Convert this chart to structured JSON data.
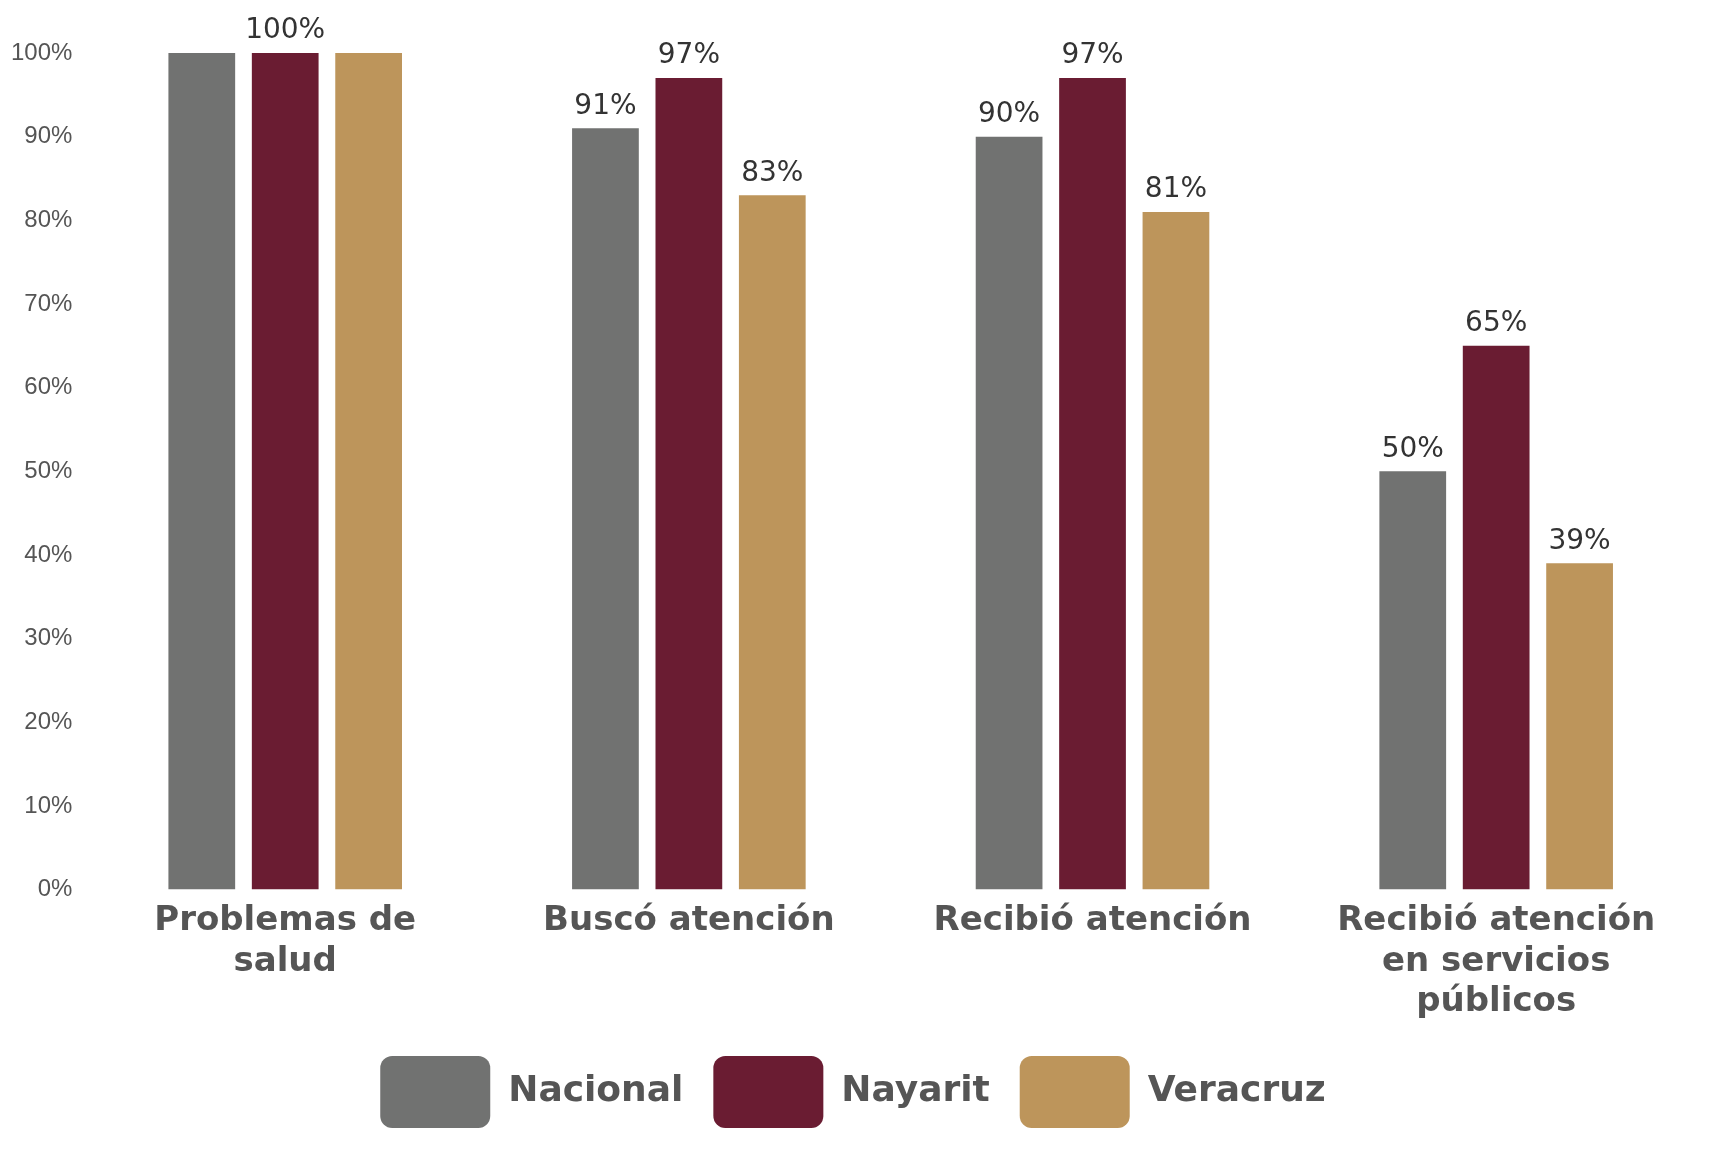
{
  "chart_data": {
    "type": "bar",
    "categories": [
      "Problemas de salud",
      "Buscó atención",
      "Recibió atención",
      "Recibió atención en servicios públicos"
    ],
    "series": [
      {
        "name": "Nacional",
        "color": "#717271",
        "values": [
          100,
          91,
          90,
          50
        ],
        "value_labels": [
          null,
          "91%",
          "90%",
          "50%"
        ]
      },
      {
        "name": "Nayarit",
        "color": "#6a1c32",
        "values": [
          100,
          97,
          97,
          65
        ],
        "value_labels": [
          "100%",
          "97%",
          "97%",
          "65%"
        ]
      },
      {
        "name": "Veracruz",
        "color": "#bd955b",
        "values": [
          100,
          83,
          81,
          39
        ],
        "value_labels": [
          null,
          "83%",
          "81%",
          "39%"
        ]
      }
    ],
    "ylim": [
      0,
      100
    ],
    "yticks": [
      {
        "value": 0,
        "label": "0%"
      },
      {
        "value": 10,
        "label": "10%"
      },
      {
        "value": 20,
        "label": "20%"
      },
      {
        "value": 30,
        "label": "30%"
      },
      {
        "value": 40,
        "label": "40%"
      },
      {
        "value": 50,
        "label": "50%"
      },
      {
        "value": 60,
        "label": "60%"
      },
      {
        "value": 70,
        "label": "70%"
      },
      {
        "value": 80,
        "label": "80%"
      },
      {
        "value": 90,
        "label": "90%"
      },
      {
        "value": 100,
        "label": "100%"
      }
    ],
    "grid": false,
    "legend": "bottom"
  }
}
